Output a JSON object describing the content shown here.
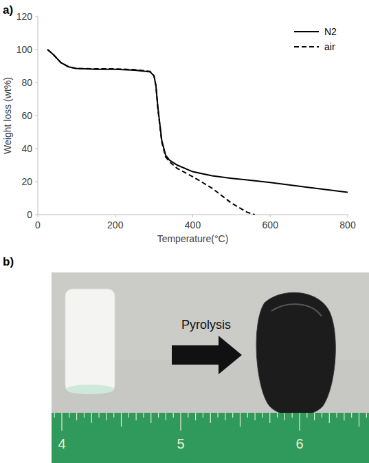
{
  "chart_data": {
    "type": "line",
    "x_label": "Temperature(°C)",
    "y_label": "Weight loss (wt%)",
    "x": [
      25,
      40,
      60,
      80,
      100,
      150,
      200,
      250,
      290,
      300,
      305,
      310,
      320,
      330,
      340,
      360,
      400,
      450,
      500,
      540,
      560,
      600,
      700,
      800
    ],
    "series": [
      {
        "name": "N2",
        "color": "#000000",
        "line_style": "solid",
        "values": [
          100,
          97,
          92,
          89.5,
          88.5,
          88,
          88,
          87.5,
          86.5,
          84,
          78,
          65,
          45,
          36,
          33,
          30,
          26,
          23.5,
          22,
          21,
          20.5,
          19.5,
          16.5,
          13.5
        ]
      },
      {
        "name": "air",
        "color": "#000000",
        "line_style": "dashed",
        "values": [
          100,
          97,
          92,
          89.5,
          88.5,
          88.3,
          88.3,
          87.8,
          86.8,
          84,
          78,
          64,
          44,
          35,
          32,
          28,
          23,
          16,
          7,
          1.5,
          0,
          null,
          null,
          null
        ]
      }
    ],
    "xlim": [
      0,
      800
    ],
    "xticks": [
      0,
      200,
      400,
      600,
      800
    ],
    "ylim": [
      0,
      120
    ],
    "yticks": [
      0,
      20,
      40,
      60,
      80,
      100,
      120
    ],
    "grid": false,
    "legend": "upper right"
  },
  "panel_labels": [
    "a)",
    "b)"
  ],
  "photo": {
    "arrow_label": "Pyrolysis",
    "ruler_labels": [
      "4",
      "5",
      "6"
    ]
  }
}
